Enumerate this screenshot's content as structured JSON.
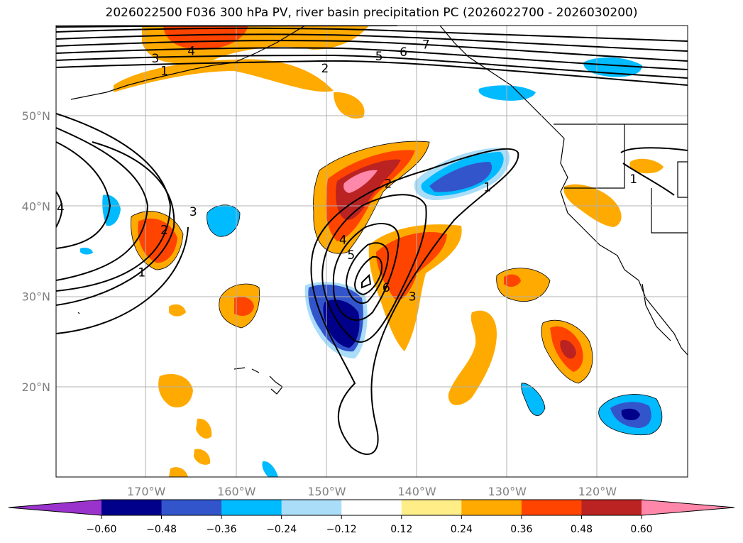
{
  "title": "2026022500 F036 300 hPa PV, river basin precipitation PC (2026022700 - 2026030200)",
  "chart_data": {
    "type": "heatmap",
    "title": "2026022500 F036 300 hPa PV, river basin precipitation PC (2026022700 - 2026030200)",
    "x_axis": {
      "ticks": [
        "170°W",
        "160°W",
        "150°W",
        "140°W",
        "130°W",
        "120°W"
      ],
      "values": [
        -170,
        -160,
        -150,
        -140,
        -130,
        -120
      ],
      "xlim": [
        -180,
        -110
      ]
    },
    "y_axis": {
      "ticks": [
        "20°N",
        "30°N",
        "40°N",
        "50°N"
      ],
      "values": [
        20,
        30,
        40,
        50
      ],
      "ylim": [
        10,
        60
      ]
    },
    "grid": true,
    "colorbar": {
      "orientation": "horizontal",
      "extend": "both",
      "tick_labels": [
        "−0.60",
        "−0.48",
        "−0.36",
        "−0.24",
        "−0.12",
        "0.12",
        "0.24",
        "0.36",
        "0.48",
        "0.60"
      ],
      "boundaries": [
        -0.6,
        -0.48,
        -0.36,
        -0.24,
        -0.12,
        0.12,
        0.24,
        0.36,
        0.48,
        0.6
      ],
      "colors": [
        "#9933cc",
        "#00008b",
        "#3355cc",
        "#00bbff",
        "#aaddf8",
        "#ffffff",
        "#ffee88",
        "#ffaa00",
        "#ff4400",
        "#bb2222",
        "#ff88aa"
      ]
    },
    "pv_contour_levels": [
      1,
      2,
      3,
      4,
      5,
      6,
      7
    ],
    "contour_labels": [
      {
        "text": "3",
        "lon": -169.0,
        "lat": 56.4
      },
      {
        "text": "4",
        "lon": -165.0,
        "lat": 57.2
      },
      {
        "text": "1",
        "lon": -168.0,
        "lat": 55.0
      },
      {
        "text": "2",
        "lon": -150.2,
        "lat": 55.3
      },
      {
        "text": "5",
        "lon": -144.2,
        "lat": 56.6
      },
      {
        "text": "6",
        "lon": -141.5,
        "lat": 57.1
      },
      {
        "text": "7",
        "lon": -139.0,
        "lat": 57.9
      },
      {
        "text": "2",
        "lon": -168.0,
        "lat": 37.4
      },
      {
        "text": "1",
        "lon": -170.5,
        "lat": 32.7
      },
      {
        "text": "4",
        "lon": -179.5,
        "lat": 39.8
      },
      {
        "text": "3",
        "lon": -164.8,
        "lat": 39.4
      },
      {
        "text": "2",
        "lon": -143.2,
        "lat": 42.5
      },
      {
        "text": "1",
        "lon": -132.2,
        "lat": 42.1
      },
      {
        "text": "1",
        "lon": -116.0,
        "lat": 43.0
      },
      {
        "text": "4",
        "lon": -148.2,
        "lat": 36.3
      },
      {
        "text": "5",
        "lon": -147.3,
        "lat": 34.6
      },
      {
        "text": "6",
        "lon": -143.4,
        "lat": 31.0
      },
      {
        "text": "3",
        "lon": -140.5,
        "lat": 30.0
      }
    ]
  }
}
